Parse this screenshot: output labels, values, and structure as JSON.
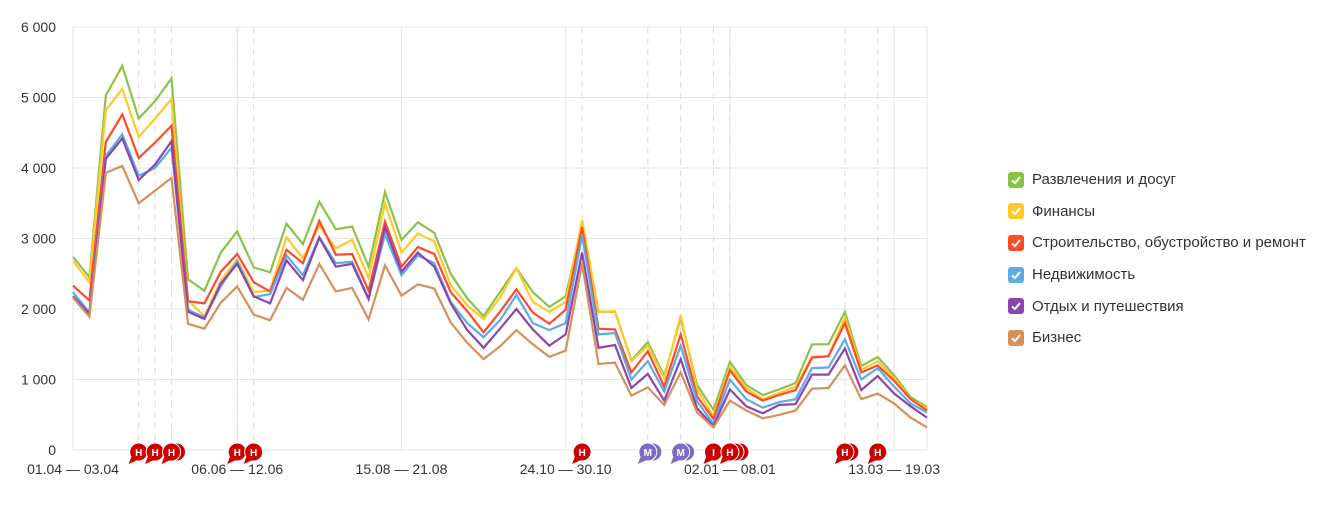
{
  "chart_data": {
    "type": "line",
    "title": "",
    "xlabel": "",
    "ylabel": "",
    "ylim": [
      0,
      6000
    ],
    "yticks": [
      0,
      1000,
      2000,
      3000,
      4000,
      5000,
      6000
    ],
    "ytick_labels": [
      "0",
      "1 000",
      "2 000",
      "3 000",
      "4 000",
      "5 000",
      "6 000"
    ],
    "num_points": 53,
    "xtick_labels": [
      {
        "index": 0,
        "label": "01.04 — 03.04"
      },
      {
        "index": 10,
        "label": "06.06 — 12.06"
      },
      {
        "index": 20,
        "label": "15.08 — 21.08"
      },
      {
        "index": 30,
        "label": "24.10 — 30.10"
      },
      {
        "index": 40,
        "label": "02.01 — 08.01"
      },
      {
        "index": 50,
        "label": "13.03 — 19.03"
      }
    ],
    "grid": true,
    "legend_position": "right",
    "series": [
      {
        "name": "Развлечения и досуг",
        "color": "#8bc34a",
        "values": [
          2740,
          2450,
          5030,
          5450,
          4700,
          4950,
          5270,
          2420,
          2260,
          2800,
          3100,
          2590,
          2520,
          3210,
          2920,
          3520,
          3130,
          3170,
          2600,
          3660,
          2980,
          3230,
          3080,
          2500,
          2150,
          1900,
          2240,
          2580,
          2240,
          2030,
          2180,
          3200,
          1960,
          1960,
          1270,
          1530,
          1050,
          1870,
          920,
          570,
          1250,
          920,
          780,
          860,
          950,
          1500,
          1500,
          1960,
          1190,
          1320,
          1060,
          750,
          610
        ]
      },
      {
        "name": "Финансы",
        "color": "#ffca28",
        "values": [
          2680,
          2380,
          4820,
          5120,
          4440,
          4700,
          4980,
          2120,
          1900,
          2400,
          2700,
          2240,
          2260,
          3020,
          2720,
          3180,
          2860,
          2980,
          2440,
          3500,
          2800,
          3070,
          2960,
          2340,
          2050,
          1860,
          2160,
          2580,
          2100,
          1960,
          2100,
          3260,
          1960,
          1970,
          1260,
          1480,
          1020,
          1910,
          860,
          480,
          1180,
          880,
          720,
          810,
          900,
          1320,
          1330,
          1880,
          1140,
          1260,
          1020,
          720,
          590
        ]
      },
      {
        "name": "Строительство, обустройство и ремонт",
        "color": "#ff4a2a",
        "values": [
          2330,
          2120,
          4370,
          4760,
          4140,
          4360,
          4600,
          2110,
          2080,
          2530,
          2780,
          2380,
          2250,
          2840,
          2650,
          3250,
          2770,
          2780,
          2260,
          3240,
          2600,
          2880,
          2780,
          2240,
          1970,
          1670,
          1960,
          2280,
          1950,
          1790,
          1990,
          3160,
          1720,
          1710,
          1100,
          1400,
          900,
          1640,
          760,
          440,
          1130,
          830,
          700,
          780,
          850,
          1310,
          1330,
          1800,
          1100,
          1200,
          980,
          720,
          560
        ]
      },
      {
        "name": "Недвижимость",
        "color": "#5dade2",
        "values": [
          2240,
          1950,
          4170,
          4480,
          3890,
          4000,
          4290,
          1990,
          1880,
          2320,
          2680,
          2170,
          2210,
          2760,
          2480,
          3020,
          2650,
          2670,
          2150,
          3060,
          2480,
          2760,
          2650,
          2100,
          1800,
          1600,
          1840,
          2200,
          1800,
          1700,
          1800,
          3040,
          1640,
          1660,
          1000,
          1260,
          830,
          1480,
          690,
          370,
          1000,
          720,
          600,
          680,
          720,
          1160,
          1170,
          1570,
          1000,
          1160,
          900,
          660,
          530
        ]
      },
      {
        "name": "Отдых и путешествия",
        "color": "#8e44ad",
        "values": [
          2180,
          1930,
          4130,
          4420,
          3830,
          4050,
          4380,
          1960,
          1860,
          2360,
          2640,
          2180,
          2080,
          2690,
          2410,
          3010,
          2600,
          2640,
          2140,
          3160,
          2530,
          2800,
          2600,
          2080,
          1700,
          1450,
          1720,
          2000,
          1710,
          1480,
          1640,
          2800,
          1450,
          1490,
          880,
          1080,
          700,
          1290,
          590,
          340,
          860,
          620,
          520,
          640,
          650,
          1070,
          1070,
          1440,
          850,
          1050,
          800,
          620,
          460
        ]
      },
      {
        "name": "Бизнес",
        "color": "#d4915a",
        "values": [
          2160,
          1890,
          3930,
          4030,
          3500,
          3680,
          3860,
          1790,
          1720,
          2090,
          2320,
          1920,
          1840,
          2300,
          2130,
          2640,
          2250,
          2300,
          1850,
          2620,
          2190,
          2350,
          2290,
          1810,
          1520,
          1290,
          1470,
          1700,
          1500,
          1320,
          1410,
          2650,
          1220,
          1240,
          770,
          890,
          640,
          1100,
          530,
          320,
          700,
          560,
          450,
          500,
          560,
          870,
          880,
          1200,
          720,
          800,
          660,
          460,
          320
        ]
      }
    ],
    "annotations": [
      {
        "index": 4,
        "letter": "Н",
        "count": 1,
        "color": "#cc0000"
      },
      {
        "index": 5,
        "letter": "Н",
        "count": 1,
        "color": "#cc0000"
      },
      {
        "index": 6,
        "letter": "Н",
        "count": 2,
        "color": "#cc0000"
      },
      {
        "index": 10,
        "letter": "Н",
        "count": 1,
        "color": "#cc0000"
      },
      {
        "index": 11,
        "letter": "Н",
        "count": 1,
        "color": "#cc0000"
      },
      {
        "index": 31,
        "letter": "Н",
        "count": 1,
        "color": "#cc0000"
      },
      {
        "index": 35,
        "letter": "М",
        "count": 2,
        "color": "#7e6bc4"
      },
      {
        "index": 37,
        "letter": "М",
        "count": 2,
        "color": "#7e6bc4"
      },
      {
        "index": 39,
        "letter": "I",
        "count": 1,
        "color": "#cc0000"
      },
      {
        "index": 40,
        "letter": "Н",
        "count": 3,
        "color": "#cc0000"
      },
      {
        "index": 47,
        "letter": "Н",
        "count": 2,
        "color": "#cc0000"
      },
      {
        "index": 49,
        "letter": "Н",
        "count": 1,
        "color": "#cc0000"
      }
    ]
  }
}
